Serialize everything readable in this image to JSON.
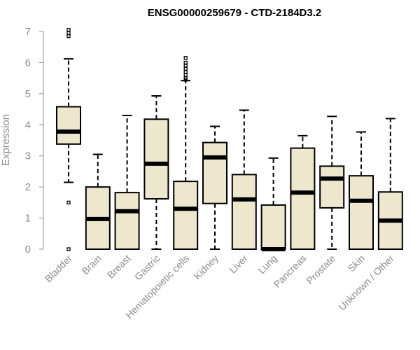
{
  "chart_data": {
    "type": "boxplot",
    "title": "ENSG00000259679 - CTD-2184D3.2",
    "ylabel": "Expression",
    "xlabel": "",
    "ylim": [
      0,
      7
    ],
    "yticks": [
      0,
      1,
      2,
      3,
      4,
      5,
      6,
      7
    ],
    "grid": false,
    "box_fill": "#ede7cd",
    "categories": [
      "Bladder",
      "Brain",
      "Breast",
      "Gastric",
      "Hematopoietic cells",
      "Kidney",
      "Liver",
      "Lung",
      "Pancreas",
      "Prostate",
      "Skin",
      "Unknown / Other"
    ],
    "boxes": [
      {
        "min": 2.15,
        "q1": 3.38,
        "median": 3.78,
        "q3": 4.58,
        "max": 6.12,
        "outliers": [
          0.0,
          1.5,
          6.85,
          6.95,
          7.05
        ]
      },
      {
        "min": 0.0,
        "q1": 0.0,
        "median": 0.97,
        "q3": 2.0,
        "max": 3.05,
        "outliers": []
      },
      {
        "min": 0.0,
        "q1": 0.0,
        "median": 1.22,
        "q3": 1.82,
        "max": 4.3,
        "outliers": []
      },
      {
        "min": 0.0,
        "q1": 1.62,
        "median": 2.75,
        "q3": 4.18,
        "max": 4.93,
        "outliers": []
      },
      {
        "min": 0.0,
        "q1": 0.0,
        "median": 1.3,
        "q3": 2.18,
        "max": 5.42,
        "outliers": [
          5.45,
          5.5,
          5.6,
          5.7,
          5.8,
          5.9,
          6.0,
          6.15
        ]
      },
      {
        "min": 0.0,
        "q1": 1.47,
        "median": 2.95,
        "q3": 3.43,
        "max": 3.95,
        "outliers": []
      },
      {
        "min": 0.0,
        "q1": 0.0,
        "median": 1.6,
        "q3": 2.4,
        "max": 4.47,
        "outliers": []
      },
      {
        "min": 0.0,
        "q1": 0.0,
        "median": 0.0,
        "q3": 1.42,
        "max": 2.93,
        "outliers": []
      },
      {
        "min": 0.0,
        "q1": 0.0,
        "median": 1.82,
        "q3": 3.25,
        "max": 3.65,
        "outliers": []
      },
      {
        "min": 0.0,
        "q1": 1.33,
        "median": 2.27,
        "q3": 2.67,
        "max": 4.27,
        "outliers": []
      },
      {
        "min": 0.0,
        "q1": 0.0,
        "median": 1.56,
        "q3": 2.36,
        "max": 3.77,
        "outliers": []
      },
      {
        "min": 0.0,
        "q1": 0.0,
        "median": 0.92,
        "q3": 1.84,
        "max": 4.2,
        "outliers": []
      }
    ]
  }
}
